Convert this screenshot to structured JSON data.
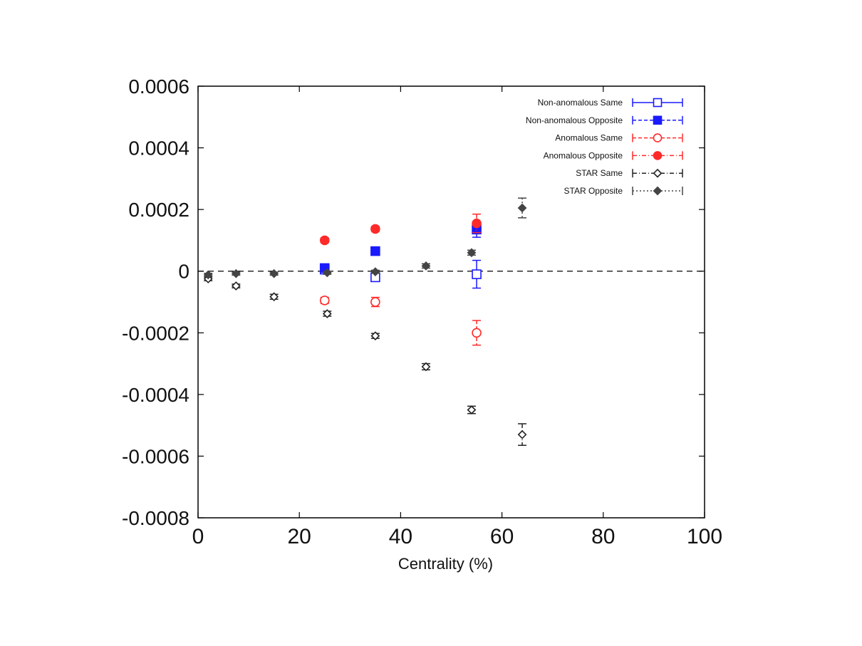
{
  "chart_data": {
    "type": "scatter",
    "title": "",
    "xlabel": "Centrality (%)",
    "ylabel": "",
    "xlim": [
      0,
      100
    ],
    "ylim": [
      -0.0008,
      0.0006
    ],
    "xticks": [
      0,
      20,
      40,
      60,
      80,
      100
    ],
    "xtick_labels": [
      "0",
      "20",
      "40",
      "60",
      "80",
      "100"
    ],
    "yticks": [
      -0.0008,
      -0.0006,
      -0.0004,
      -0.0002,
      0,
      0.0002,
      0.0004,
      0.0006
    ],
    "ytick_labels": [
      "-0.0008",
      "-0.0006",
      "-0.0004",
      "-0.0002",
      "0",
      "0.0002",
      "0.0004",
      "0.0006"
    ],
    "zero_line": true,
    "legend_position": "top-right",
    "series": [
      {
        "name": "Non-anomalous Same",
        "color": "#1a1aff",
        "marker": "square-open",
        "line": "solid",
        "points": [
          {
            "x": 25,
            "y": 5e-06,
            "err": 8e-06
          },
          {
            "x": 35,
            "y": -2e-05,
            "err": 1e-05
          },
          {
            "x": 55,
            "y": -1e-05,
            "err": 4.5e-05
          }
        ]
      },
      {
        "name": "Non-anomalous Opposite",
        "color": "#1a1aff",
        "marker": "square-filled",
        "line": "dashed",
        "points": [
          {
            "x": 25,
            "y": 1e-05,
            "err": 6e-06
          },
          {
            "x": 35,
            "y": 6.5e-05,
            "err": 6e-06
          },
          {
            "x": 55,
            "y": 0.000135,
            "err": 2.5e-05
          }
        ]
      },
      {
        "name": "Anomalous Same",
        "color": "#ff2a2a",
        "marker": "circle-open",
        "line": "dashed",
        "points": [
          {
            "x": 25,
            "y": -9.5e-05,
            "err": 1e-05
          },
          {
            "x": 35,
            "y": -0.0001,
            "err": 1.5e-05
          },
          {
            "x": 55,
            "y": -0.0002,
            "err": 4e-05
          }
        ]
      },
      {
        "name": "Anomalous Opposite",
        "color": "#ff2a2a",
        "marker": "circle-filled",
        "line": "dashdot",
        "points": [
          {
            "x": 25,
            "y": 0.0001,
            "err": 8e-06
          },
          {
            "x": 35,
            "y": 0.000137,
            "err": 8e-06
          },
          {
            "x": 55,
            "y": 0.000155,
            "err": 3e-05
          }
        ]
      },
      {
        "name": "STAR Same",
        "color": "#222222",
        "marker": "diamond-open",
        "line": "dashdot",
        "points": [
          {
            "x": 2,
            "y": -2.5e-05,
            "err": 6e-06
          },
          {
            "x": 7.5,
            "y": -4.8e-05,
            "err": 6e-06
          },
          {
            "x": 15,
            "y": -8.3e-05,
            "err": 8e-06
          },
          {
            "x": 25.5,
            "y": -0.000138,
            "err": 8e-06
          },
          {
            "x": 35,
            "y": -0.00021,
            "err": 8e-06
          },
          {
            "x": 45,
            "y": -0.00031,
            "err": 1e-05
          },
          {
            "x": 54,
            "y": -0.00045,
            "err": 1.2e-05
          },
          {
            "x": 64,
            "y": -0.00053,
            "err": 3.5e-05
          }
        ]
      },
      {
        "name": "STAR Opposite",
        "color": "#444444",
        "marker": "diamond-filled",
        "line": "dotted",
        "points": [
          {
            "x": 2,
            "y": -1.2e-05,
            "err": 5e-06
          },
          {
            "x": 7.5,
            "y": -8e-06,
            "err": 5e-06
          },
          {
            "x": 15,
            "y": -8e-06,
            "err": 5e-06
          },
          {
            "x": 25.5,
            "y": -5e-06,
            "err": 5e-06
          },
          {
            "x": 35,
            "y": -2e-06,
            "err": 5e-06
          },
          {
            "x": 45,
            "y": 1.7e-05,
            "err": 7e-06
          },
          {
            "x": 54,
            "y": 6e-05,
            "err": 8e-06
          },
          {
            "x": 64,
            "y": 0.000205,
            "err": 3.2e-05
          }
        ]
      }
    ]
  }
}
